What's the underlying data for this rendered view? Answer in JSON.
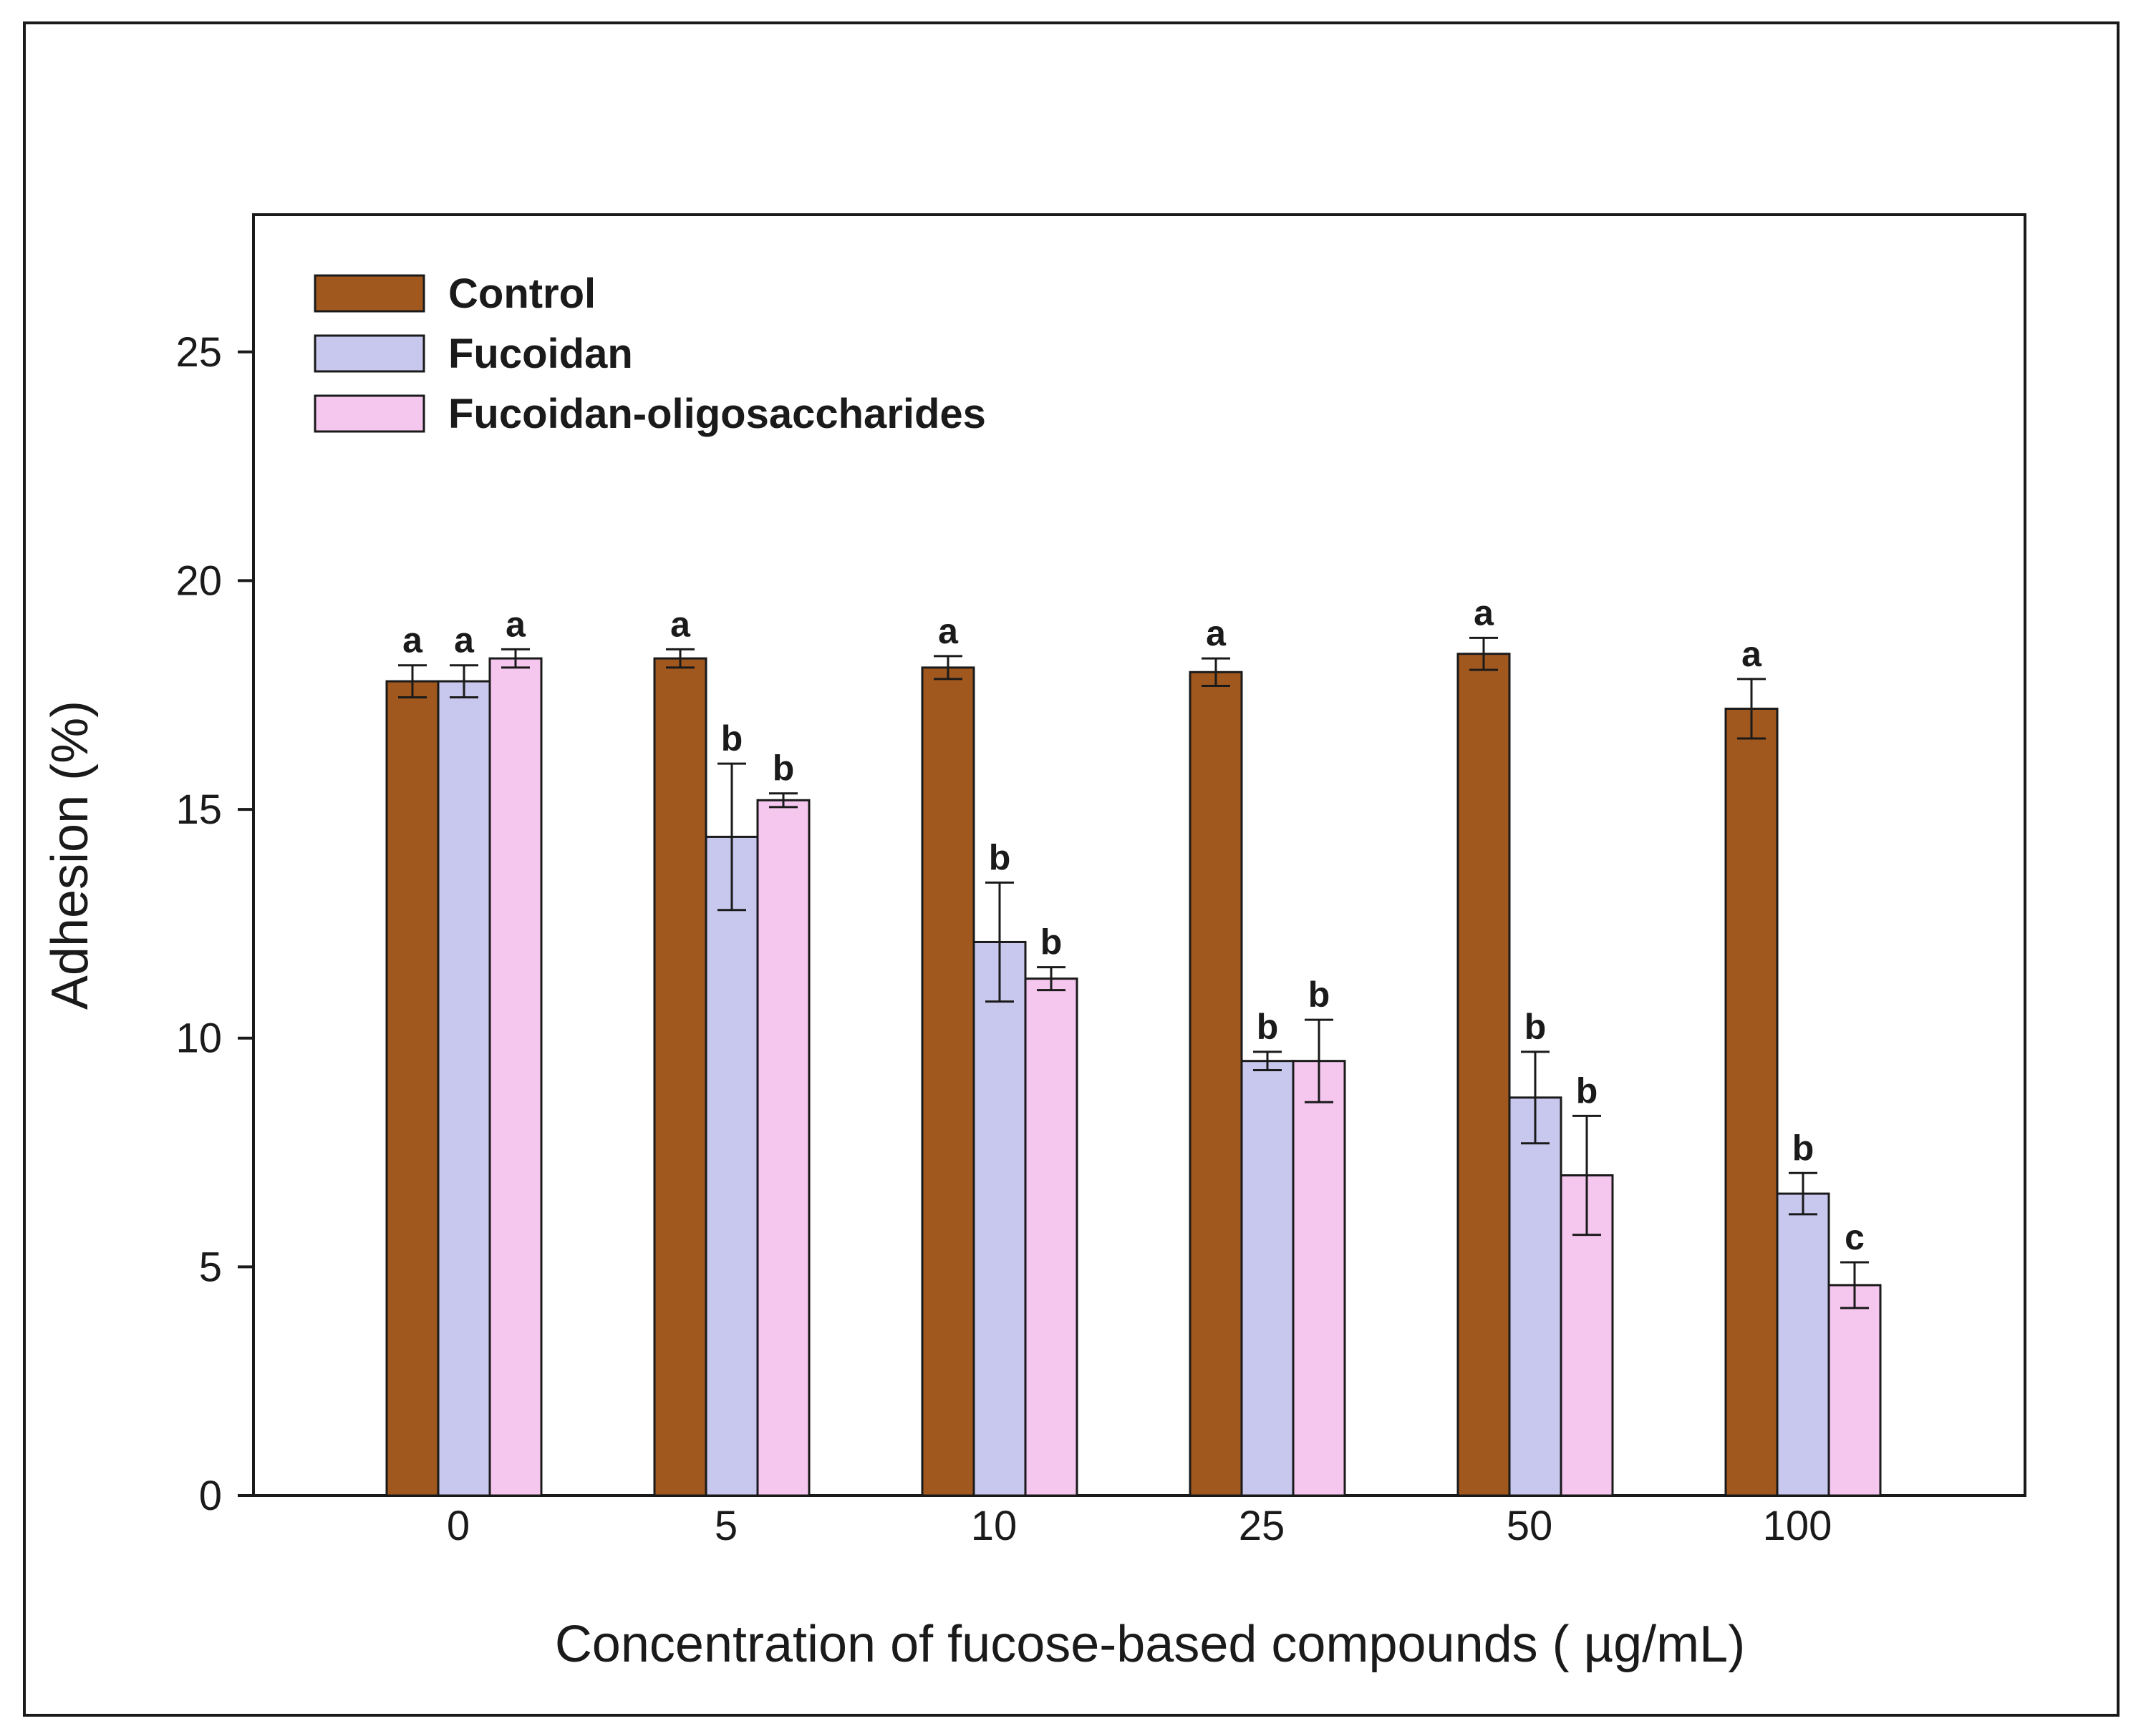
{
  "chart_data": {
    "type": "bar",
    "title": "",
    "xlabel": "Concentration of fucose-based compounds ( µg/mL)",
    "ylabel": "Adhesion (%)",
    "ylim": [
      0,
      28
    ],
    "yticks": [
      0,
      5,
      10,
      15,
      20,
      25
    ],
    "grid": false,
    "legend_position": "top-left",
    "categories": [
      "0",
      "5",
      "10",
      "25",
      "50",
      "100"
    ],
    "series": [
      {
        "name": "Control",
        "color": "#a0581f",
        "values": [
          17.8,
          18.3,
          18.1,
          18.0,
          18.4,
          17.2
        ],
        "errors": [
          0.35,
          0.2,
          0.25,
          0.3,
          0.35,
          0.65
        ],
        "labels": [
          "a",
          "a",
          "a",
          "a",
          "a",
          "a"
        ]
      },
      {
        "name": "Fucoidan",
        "color": "#c8c8ee",
        "values": [
          17.8,
          14.4,
          12.1,
          9.5,
          8.7,
          6.6
        ],
        "errors": [
          0.35,
          1.6,
          1.3,
          0.2,
          1.0,
          0.45
        ],
        "labels": [
          "a",
          "b",
          "b",
          "b",
          "b",
          "b"
        ]
      },
      {
        "name": "Fucoidan-oligosaccharides",
        "color": "#f5c6ee",
        "values": [
          18.3,
          15.2,
          11.3,
          9.5,
          7.0,
          4.6
        ],
        "errors": [
          0.2,
          0.15,
          0.25,
          0.9,
          1.3,
          0.5
        ],
        "labels": [
          "a",
          "b",
          "b",
          "b",
          "b",
          "c"
        ]
      }
    ]
  }
}
